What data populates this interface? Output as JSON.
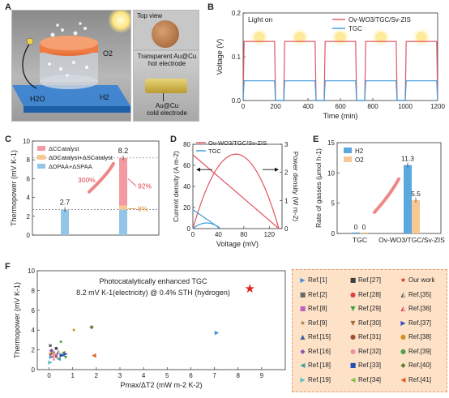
{
  "panels": {
    "a": {
      "letter": "A",
      "labels": {
        "o2": "O2",
        "h2o": "H2O",
        "h2": "H2"
      },
      "top_view": "Top view",
      "hot_electrode": "Transparent Au@Cu\nhot electrode",
      "cold_electrode": "Au@Cu\ncold electrode"
    },
    "b": {
      "letter": "B",
      "light_on": "Light on",
      "chart_data": {
        "type": "line",
        "xlabel": "Time (min)",
        "ylabel": "Voltage (V)",
        "xlim": [
          0,
          1200
        ],
        "ylim": [
          0,
          0.2
        ],
        "xticks": [
          0,
          200,
          400,
          600,
          800,
          1000,
          1200
        ],
        "yticks": [
          0.0,
          0.1,
          0.2
        ],
        "ytick_labels": [
          "0.0",
          "0.1",
          "0.2"
        ],
        "cycles": [
          [
            0,
            200
          ],
          [
            250,
            450
          ],
          [
            500,
            700
          ],
          [
            750,
            950
          ],
          [
            1000,
            1200
          ]
        ],
        "series": [
          {
            "name": "Ov-WO3/TGC/Sv-ZIS",
            "color": "#e05563",
            "plateau": 0.135
          },
          {
            "name": "TGC",
            "color": "#3a9ad9",
            "plateau": 0.045
          }
        ]
      }
    },
    "c": {
      "letter": "C",
      "chart_data": {
        "type": "bar",
        "ylabel": "Thermopower (mV K-1)",
        "categories": [
          "TGC",
          "Ov-WO3/TGC/Sv-ZIS"
        ],
        "values": [
          2.7,
          8.2
        ],
        "value_labels": [
          "2.7",
          "8.2"
        ],
        "ylim": [
          0,
          10
        ],
        "yticks": [
          0,
          2,
          4,
          6,
          8,
          10
        ],
        "legend": [
          "ΔCCatalyst",
          "ΔDCatalyst+ΔSCatalyst",
          "ΔDPAA+ΔSPAA"
        ],
        "legend_colors": [
          "#f19aa2",
          "#f7c894",
          "#93c5e8"
        ],
        "stack_components": [
          {
            "segment": "ΔDPAA+ΔSPAA",
            "value": 2.7
          }
        ],
        "annotations": [
          "300%",
          "92%",
          "8%"
        ]
      }
    },
    "d": {
      "letter": "D",
      "chart_data": {
        "type": "line",
        "xlabel": "Voltage (mV)",
        "ylabel": "Current density (A m-2)",
        "ylabel_right": "Power density (W m-2)",
        "xlim": [
          0,
          140
        ],
        "ylim": [
          0,
          80
        ],
        "ylim_right": [
          0,
          3
        ],
        "xticks": [
          0,
          40,
          80,
          120
        ],
        "yticks": [
          0,
          20,
          40,
          60,
          80
        ],
        "yticks_right": [
          0,
          1,
          2,
          3
        ],
        "series": [
          {
            "name": "Ov-WO3/TGC/Sv-ZIS",
            "color": "#e05563",
            "current_x": [
              0,
              135
            ],
            "current_y": [
              70,
              0
            ],
            "power_peak_x": 67,
            "power_peak_y": 2.65
          },
          {
            "name": "TGC",
            "color": "#3a9ad9",
            "current_x": [
              0,
              43
            ],
            "current_y": [
              18,
              0
            ],
            "power_peak_x": 21,
            "power_peak_y": 0.2
          }
        ]
      }
    },
    "e": {
      "letter": "E",
      "chart_data": {
        "type": "bar",
        "ylabel": "Rate of gasses (μmol h-1)",
        "categories": [
          "TGC",
          "Ov-WO3/TGC/Sv-ZIS"
        ],
        "series": [
          {
            "name": "H2",
            "values": [
              0,
              11.3
            ],
            "color": "#5aa9de"
          },
          {
            "name": "O2",
            "values": [
              0,
              5.5
            ],
            "color": "#f7c894"
          }
        ],
        "value_labels": [
          "0",
          "0",
          "11.3",
          "5.5"
        ],
        "ylim": [
          0,
          15
        ],
        "yticks": [
          0,
          5,
          10,
          15
        ]
      }
    },
    "f": {
      "letter": "F",
      "title_line1": "Photocatalytically enhanced TGC",
      "title_line2": "8.2 mV K-1(electricity) @ 0.4% STH (hydrogen)",
      "chart_data": {
        "type": "scatter",
        "xlabel": "Pmax/ΔT2 (mW m-2 K-2)",
        "ylabel": "Thermopower (mV K-1)",
        "xlim": [
          -0.5,
          10
        ],
        "ylim": [
          0,
          10
        ],
        "xticks": [
          0,
          1,
          2,
          3,
          4,
          5,
          6,
          7,
          8,
          9
        ],
        "yticks": [
          0,
          2,
          4,
          6,
          8,
          10
        ],
        "points": [
          {
            "label": "Ref.[1]",
            "x": 0.1,
            "y": 1.4,
            "color": "#4a90d9",
            "marker": "▶"
          },
          {
            "label": "Ref.[2]",
            "x": 0.05,
            "y": 2.5,
            "color": "#6a6a6a",
            "marker": "■"
          },
          {
            "label": "Ref.[8]",
            "x": 0.3,
            "y": 1.5,
            "color": "#c060c0",
            "marker": "■"
          },
          {
            "label": "Ref.[9]",
            "x": 0.2,
            "y": 1.8,
            "color": "#a08040",
            "marker": "★"
          },
          {
            "label": "Ref.[15]",
            "x": 0.6,
            "y": 1.6,
            "color": "#4060a0",
            "marker": "▲"
          },
          {
            "label": "Ref.[16]",
            "x": 0.1,
            "y": 2.0,
            "color": "#8a50b0",
            "marker": "◆"
          },
          {
            "label": "Ref.[18]",
            "x": 0.4,
            "y": 1.2,
            "color": "#40a0a0",
            "marker": "◀"
          },
          {
            "label": "Ref.[19]",
            "x": 0.05,
            "y": 0.8,
            "color": "#60c0c0",
            "marker": "▶"
          },
          {
            "label": "Ref.[27]",
            "x": 0.3,
            "y": 2.2,
            "color": "#404040",
            "marker": "■"
          },
          {
            "label": "Ref.[28]",
            "x": 0.1,
            "y": 1.7,
            "color": "#e04040",
            "marker": "●"
          },
          {
            "label": "Ref.[29]",
            "x": 0.7,
            "y": 1.3,
            "color": "#40a040",
            "marker": "▼"
          },
          {
            "label": "Ref.[30]",
            "x": 0.05,
            "y": 1.6,
            "color": "#a07030",
            "marker": "▼"
          },
          {
            "label": "Ref.[31]",
            "x": 0.3,
            "y": 1.4,
            "color": "#a05030",
            "marker": "●"
          },
          {
            "label": "Ref.[32]",
            "x": 0.2,
            "y": 1.1,
            "color": "#f090a0",
            "marker": "●"
          },
          {
            "label": "Ref.[33]",
            "x": 0.5,
            "y": 1.5,
            "color": "#2050b0",
            "marker": "■"
          },
          {
            "label": "Ref.[34]",
            "x": 0.6,
            "y": 1.8,
            "color": "#80c040",
            "marker": "◀"
          },
          {
            "label": "Our work",
            "x": 8.5,
            "y": 8.2,
            "color": "#e02020",
            "marker": "★"
          },
          {
            "label": "Ref.[35]",
            "x": 0.4,
            "y": 1.9,
            "color": "#606060",
            "marker": "◭"
          },
          {
            "label": "Ref.[36]",
            "x": 0.2,
            "y": 1.5,
            "color": "#e04060",
            "marker": "◭"
          },
          {
            "label": "Ref.[37]",
            "x": 0.7,
            "y": 1.7,
            "color": "#4050c0",
            "marker": "▶"
          },
          {
            "label": "Ref.[38]",
            "x": 1.05,
            "y": 4.1,
            "color": "#d09020",
            "marker": "●"
          },
          {
            "label": "Ref.[39]",
            "x": 0.5,
            "y": 2.9,
            "color": "#50a050",
            "marker": "●"
          },
          {
            "label": "Ref.[40]",
            "x": 1.8,
            "y": 4.4,
            "color": "#608030",
            "marker": "◆"
          },
          {
            "label": "Ref.[41]",
            "x": 1.9,
            "y": 1.5,
            "color": "#e06020",
            "marker": "◀"
          },
          {
            "label": "Ref.[1]b",
            "x": 7.1,
            "y": 3.8,
            "color": "#4a90d9",
            "marker": "▶"
          }
        ],
        "legend": [
          {
            "label": "Ref.[1]",
            "color": "#4a90d9",
            "marker": "▶"
          },
          {
            "label": "Ref.[27]",
            "color": "#404040",
            "marker": "■"
          },
          {
            "label": "Our work",
            "color": "#e02020",
            "marker": "★"
          },
          {
            "label": "Ref.[2]",
            "color": "#6a6a6a",
            "marker": "■"
          },
          {
            "label": "Ref.[28]",
            "color": "#e04040",
            "marker": "●"
          },
          {
            "label": "Ref.[35]",
            "color": "#606060",
            "marker": "◭"
          },
          {
            "label": "Ref.[8]",
            "color": "#c060c0",
            "marker": "■"
          },
          {
            "label": "Ref.[29]",
            "color": "#40a040",
            "marker": "▼"
          },
          {
            "label": "Ref.[36]",
            "color": "#e04060",
            "marker": "◭"
          },
          {
            "label": "Ref.[9]",
            "color": "#a08040",
            "marker": "★"
          },
          {
            "label": "Ref.[30]",
            "color": "#a07030",
            "marker": "▼"
          },
          {
            "label": "Ref.[37]",
            "color": "#4050c0",
            "marker": "▶"
          },
          {
            "label": "Ref.[15]",
            "color": "#4060a0",
            "marker": "▲"
          },
          {
            "label": "Ref.[31]",
            "color": "#a05030",
            "marker": "●"
          },
          {
            "label": "Ref.[38]",
            "color": "#d09020",
            "marker": "●"
          },
          {
            "label": "Ref.[16]",
            "color": "#8a50b0",
            "marker": "◆"
          },
          {
            "label": "Ref.[32]",
            "color": "#f090a0",
            "marker": "●"
          },
          {
            "label": "Ref.[39]",
            "color": "#50a050",
            "marker": "●"
          },
          {
            "label": "Ref.[18]",
            "color": "#40a0a0",
            "marker": "◀"
          },
          {
            "label": "Ref.[33]",
            "color": "#2050b0",
            "marker": "■"
          },
          {
            "label": "Ref.[40]",
            "color": "#608030",
            "marker": "◆"
          },
          {
            "label": "Ref.[19]",
            "color": "#60c0c0",
            "marker": "▶"
          },
          {
            "label": "Ref.[34]",
            "color": "#80c040",
            "marker": "◀"
          },
          {
            "label": "Ref.[41]",
            "color": "#e06020",
            "marker": "◀"
          }
        ]
      }
    }
  }
}
